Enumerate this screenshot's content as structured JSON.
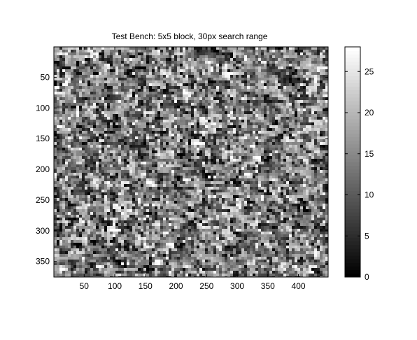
{
  "chart_data": {
    "type": "heatmap",
    "title": "Test Bench: 5x5 block, 30px search range",
    "xlabel": "",
    "ylabel": "",
    "colormap": "gray",
    "x_ticks": [
      50,
      100,
      150,
      200,
      250,
      300,
      350,
      400
    ],
    "y_ticks": [
      50,
      100,
      150,
      200,
      250,
      300,
      350
    ],
    "xlim": [
      0.5,
      448.5
    ],
    "ylim": [
      0.5,
      375.5
    ],
    "y_reversed": true,
    "colorbar": {
      "range": [
        0,
        28
      ],
      "ticks": [
        0,
        5,
        10,
        15,
        20,
        25
      ]
    },
    "image_size": {
      "cols": 448,
      "rows": 375
    },
    "description_note": ""
  }
}
